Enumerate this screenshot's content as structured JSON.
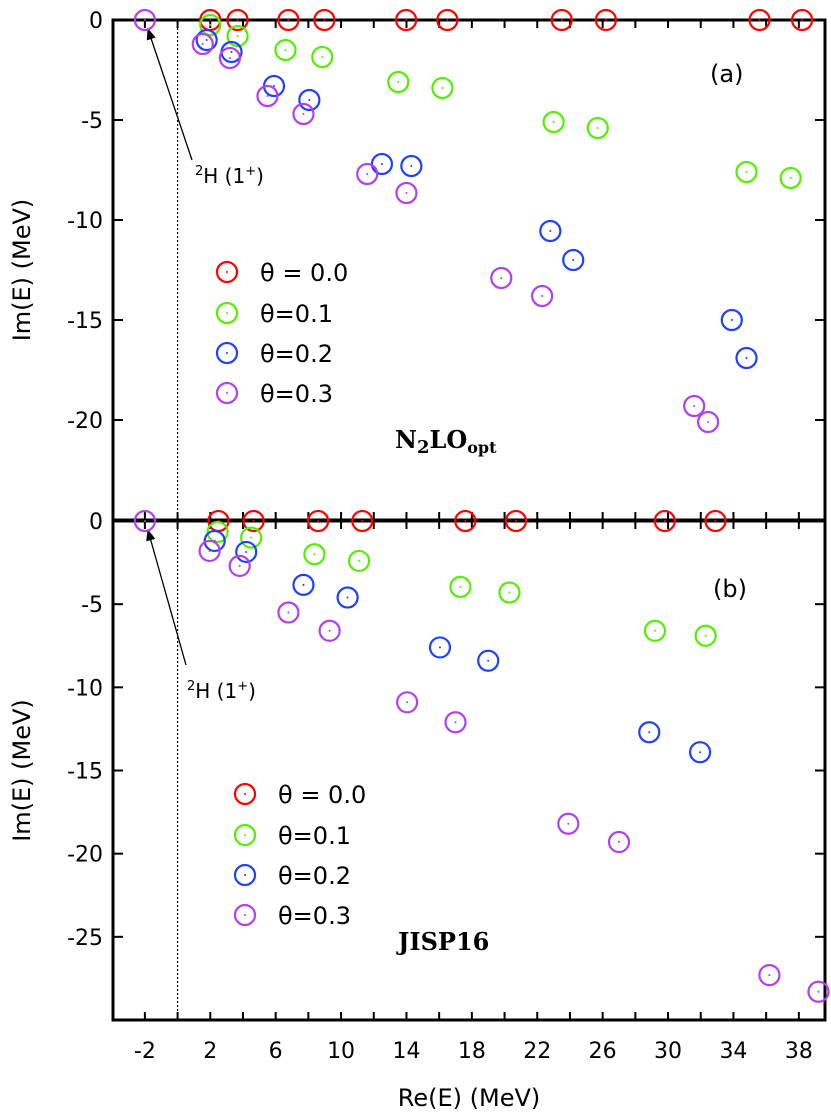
{
  "chart_data": [
    {
      "type": "scatter",
      "panel_label": "(a)",
      "model_label": "N2LO",
      "model_subscript_2": "2",
      "model_subscript": "opt",
      "xlabel": "Re(E)  (MeV)",
      "ylabel": "Im(E)  (MeV)",
      "xlim": [
        -3.95,
        39.6
      ],
      "ylim": [
        -25,
        0
      ],
      "yticks": [
        0,
        -5,
        -10,
        -15,
        -20
      ],
      "annotation": {
        "text": "2H (1+)",
        "sup1": "2",
        "base": "H (1",
        "sup2": "+",
        "close": ")",
        "x": -2,
        "y": 0
      },
      "threshold_line_x": 0,
      "series": [
        {
          "name": "θ = 0.0",
          "color": "#ff0000",
          "x": [
            2.0,
            3.67,
            6.78,
            8.98,
            13.98,
            16.5,
            23.5,
            26.2,
            35.6,
            38.2
          ],
          "y": [
            0,
            0,
            0,
            0,
            0,
            0,
            0,
            0,
            0,
            0
          ]
        },
        {
          "name": "θ=0.1",
          "color": "#55ee00",
          "x": [
            2.0,
            3.67,
            6.6,
            8.85,
            13.5,
            16.2,
            23.0,
            25.7,
            34.8,
            37.5
          ],
          "y": [
            -0.25,
            -0.8,
            -1.5,
            -1.85,
            -3.1,
            -3.4,
            -5.1,
            -5.4,
            -7.6,
            -7.9
          ]
        },
        {
          "name": "θ=0.2",
          "color": "#2040ff",
          "x": [
            1.78,
            3.3,
            5.9,
            8.06,
            12.5,
            14.3,
            22.8,
            24.2,
            33.9,
            34.8
          ],
          "y": [
            -1.0,
            -1.6,
            -3.3,
            -4.0,
            -7.2,
            -7.3,
            -10.55,
            -12.0,
            -15.0,
            -16.9
          ]
        },
        {
          "name": "θ=0.3",
          "color": "#b040f0",
          "x": [
            -2,
            1.54,
            3.2,
            5.5,
            7.7,
            11.6,
            14.0,
            19.8,
            22.3,
            31.6,
            32.45
          ],
          "y": [
            0,
            -1.2,
            -1.9,
            -3.8,
            -4.7,
            -7.7,
            -8.65,
            -12.9,
            -13.8,
            -19.3,
            -20.1
          ]
        }
      ]
    },
    {
      "type": "scatter",
      "panel_label": "(b)",
      "model_label": "JISP16",
      "xlabel": "Re(E)  (MeV)",
      "ylabel": "Im(E)  (MeV)",
      "xlim": [
        -3.95,
        39.6
      ],
      "ylim": [
        -30,
        0
      ],
      "xticks": [
        -2,
        2,
        6,
        10,
        14,
        18,
        22,
        26,
        30,
        34,
        38
      ],
      "yticks": [
        0,
        -5,
        -10,
        -15,
        -20,
        -25
      ],
      "annotation": {
        "text": "2H (1+)",
        "sup1": "2",
        "base": "H (1",
        "sup2": "+",
        "close": ")",
        "x": -2,
        "y": 0
      },
      "threshold_line_x": 0,
      "series": [
        {
          "name": "θ = 0.0",
          "color": "#ff0000",
          "x": [
            2.5,
            4.65,
            8.6,
            11.3,
            17.6,
            20.7,
            29.8,
            32.9
          ],
          "y": [
            0,
            0,
            0,
            0,
            0,
            0,
            0,
            0
          ]
        },
        {
          "name": "θ=0.1",
          "color": "#55ee00",
          "x": [
            2.45,
            4.5,
            8.37,
            11.1,
            17.3,
            20.3,
            29.2,
            32.3
          ],
          "y": [
            -0.66,
            -1.0,
            -2.0,
            -2.4,
            -3.96,
            -4.3,
            -6.6,
            -6.9
          ]
        },
        {
          "name": "θ=0.2",
          "color": "#2040ff",
          "x": [
            2.27,
            4.2,
            7.7,
            10.4,
            16.05,
            19.0,
            28.85,
            31.96
          ],
          "y": [
            -1.2,
            -1.86,
            -3.84,
            -4.6,
            -7.6,
            -8.4,
            -12.7,
            -13.9
          ]
        },
        {
          "name": "θ=0.3",
          "color": "#b040f0",
          "x": [
            -2,
            1.96,
            3.8,
            6.78,
            9.3,
            14.04,
            17.0,
            23.9,
            27.0,
            36.2,
            39.2
          ],
          "y": [
            0,
            -1.8,
            -2.7,
            -5.5,
            -6.6,
            -10.9,
            -12.1,
            -18.2,
            -19.3,
            -27.3,
            -28.3
          ]
        }
      ]
    }
  ]
}
